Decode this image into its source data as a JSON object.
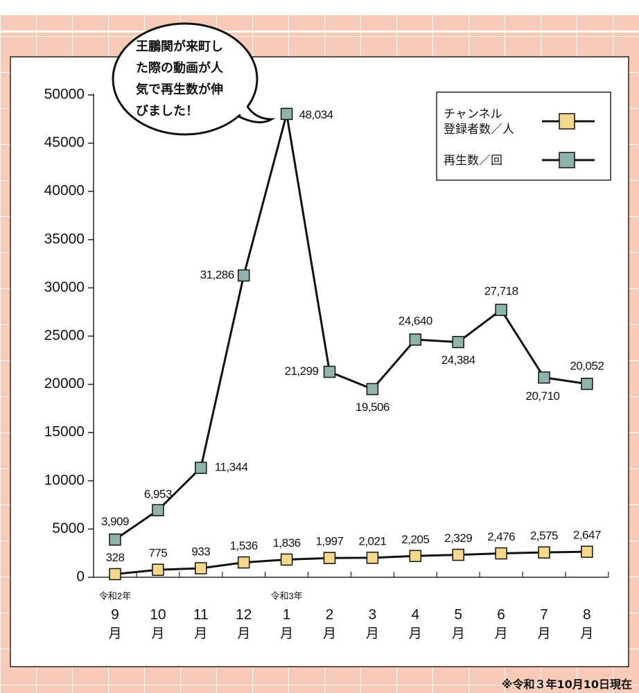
{
  "chart_data": {
    "type": "line",
    "annotation": "王鵬関が来町した際の動画が人気で再生数が伸びました！",
    "note": "※令和３年10月10日現在",
    "categories": [
      "9",
      "10",
      "11",
      "12",
      "1",
      "2",
      "3",
      "4",
      "5",
      "6",
      "7",
      "8"
    ],
    "x_unit": "月",
    "era_labels": [
      {
        "index": 0,
        "label": "令和2年"
      },
      {
        "index": 4,
        "label": "令和3年"
      }
    ],
    "series": [
      {
        "name": "チャンネル\n登録者数／人",
        "color": "#f6d88c",
        "values": [
          328,
          775,
          933,
          1536,
          1836,
          1997,
          2021,
          2205,
          2329,
          2476,
          2575,
          2647
        ],
        "value_labels": [
          "328",
          "775",
          "933",
          "1,536",
          "1,836",
          "1,997",
          "2,021",
          "2,205",
          "2,329",
          "2,476",
          "2,575",
          "2,647"
        ]
      },
      {
        "name": "再生数／回",
        "color": "#8fb3ad",
        "values": [
          3909,
          6953,
          11344,
          31286,
          48034,
          21299,
          19506,
          24640,
          24384,
          27718,
          20710,
          20052
        ],
        "value_labels": [
          "3,909",
          "6,953",
          "11,344",
          "31,286",
          "48,034",
          "21,299",
          "19,506",
          "24,640",
          "24,384",
          "27,718",
          "20,710",
          "20,052"
        ]
      }
    ],
    "ylim": [
      0,
      50000
    ],
    "yticks": [
      0,
      5000,
      10000,
      15000,
      20000,
      25000,
      30000,
      35000,
      40000,
      45000,
      50000
    ]
  }
}
